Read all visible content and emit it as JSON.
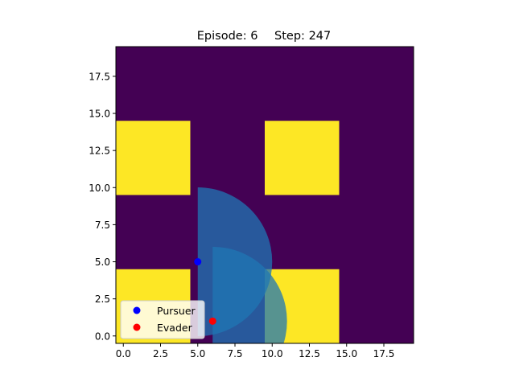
{
  "title": {
    "episode_label": "Episode:",
    "episode": "6",
    "step_label": "Step:",
    "step": "247"
  },
  "grid": {
    "xlim": [
      -0.5,
      19.5
    ],
    "ylim": [
      -0.5,
      19.5
    ],
    "background_color": "#440154",
    "obstacle_color": "#fde725",
    "obstacles": [
      {
        "x0": -0.5,
        "x1": 4.5,
        "y0": 9.5,
        "y1": 14.5
      },
      {
        "x0": 9.5,
        "x1": 14.5,
        "y0": 9.5,
        "y1": 14.5
      },
      {
        "x0": -0.5,
        "x1": 4.5,
        "y0": -0.5,
        "y1": 4.5
      },
      {
        "x0": 9.5,
        "x1": 14.5,
        "y0": -0.5,
        "y1": 4.5
      }
    ],
    "x_ticks": [
      "0.0",
      "2.5",
      "5.0",
      "7.5",
      "10.0",
      "12.5",
      "15.0",
      "17.5"
    ],
    "y_ticks": [
      "0.0",
      "2.5",
      "5.0",
      "7.5",
      "10.0",
      "12.5",
      "15.0",
      "17.5"
    ]
  },
  "agents": {
    "pursuer": {
      "name": "Pursuer",
      "x": 5,
      "y": 5,
      "color": "#0000ff",
      "fov_radius": 5,
      "fov_facing": "east",
      "fov_color": "#1f77b4"
    },
    "evader": {
      "name": "Evader",
      "x": 6,
      "y": 1,
      "color": "#ff0000",
      "fov_radius": 5,
      "fov_facing": "east",
      "fov_color": "#1f77b4"
    }
  },
  "legend": {
    "position": "lower-left",
    "items": [
      {
        "label": "Pursuer",
        "color": "#0000ff"
      },
      {
        "label": "Evader",
        "color": "#ff0000"
      }
    ]
  }
}
